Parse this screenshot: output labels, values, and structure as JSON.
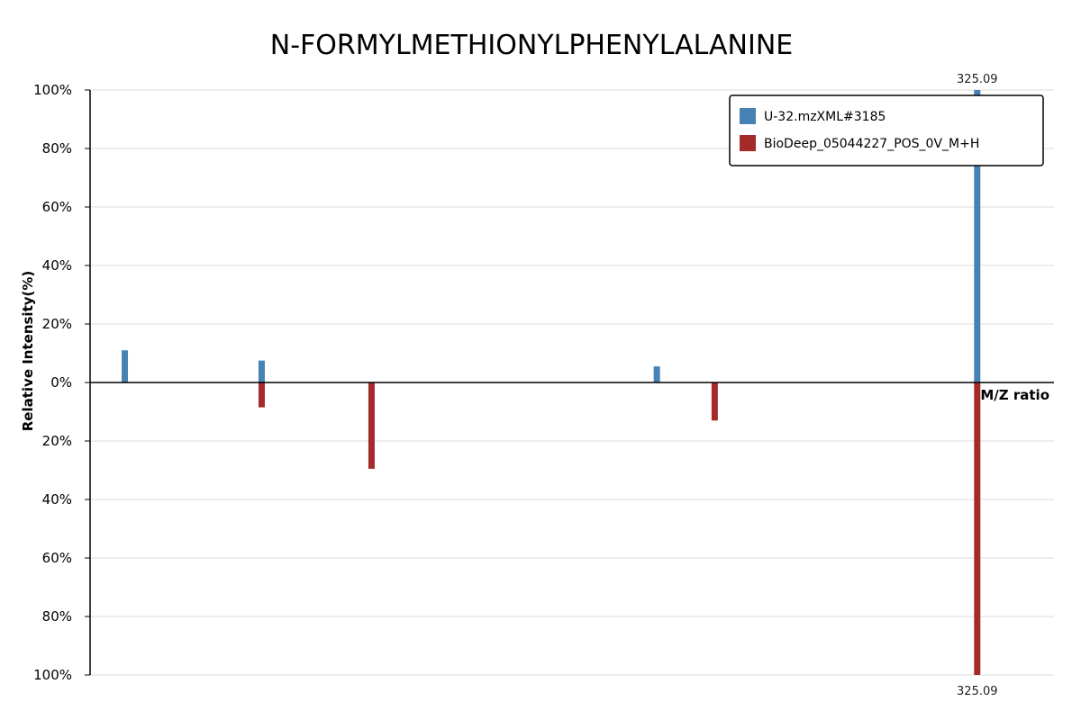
{
  "chart_data": {
    "type": "bar",
    "title": "N-FORMYLMETHIONYLPHENYLALANINE",
    "xlabel": "M/Z ratio",
    "ylabel": "Relative Intensity(%)",
    "ylim_top": [
      0,
      100
    ],
    "ylim_bottom": [
      0,
      100
    ],
    "y_ticks_top": [
      "0%",
      "20%",
      "40%",
      "60%",
      "80%",
      "100%"
    ],
    "y_ticks_bottom": [
      "20%",
      "40%",
      "60%",
      "80%",
      "100%"
    ],
    "x_range": [
      95,
      345
    ],
    "legend_position": "top-right",
    "grid": true,
    "series": [
      {
        "name": "U-32.mzXML#3185",
        "color": "#4682b4",
        "direction": "up",
        "mz": [
          104.0,
          139.5,
          242.0,
          325.09
        ],
        "intensity": [
          11,
          7.5,
          5.5,
          100
        ],
        "labels": [
          "",
          "",
          "",
          "325.09"
        ]
      },
      {
        "name": "BioDeep_05044227_POS_0V_M+H",
        "color": "#a52a2a",
        "direction": "down",
        "mz": [
          139.5,
          168.0,
          257.0,
          325.09
        ],
        "intensity": [
          8.5,
          29.5,
          13,
          100
        ],
        "labels": [
          "",
          "",
          "",
          "325.09"
        ]
      }
    ]
  }
}
